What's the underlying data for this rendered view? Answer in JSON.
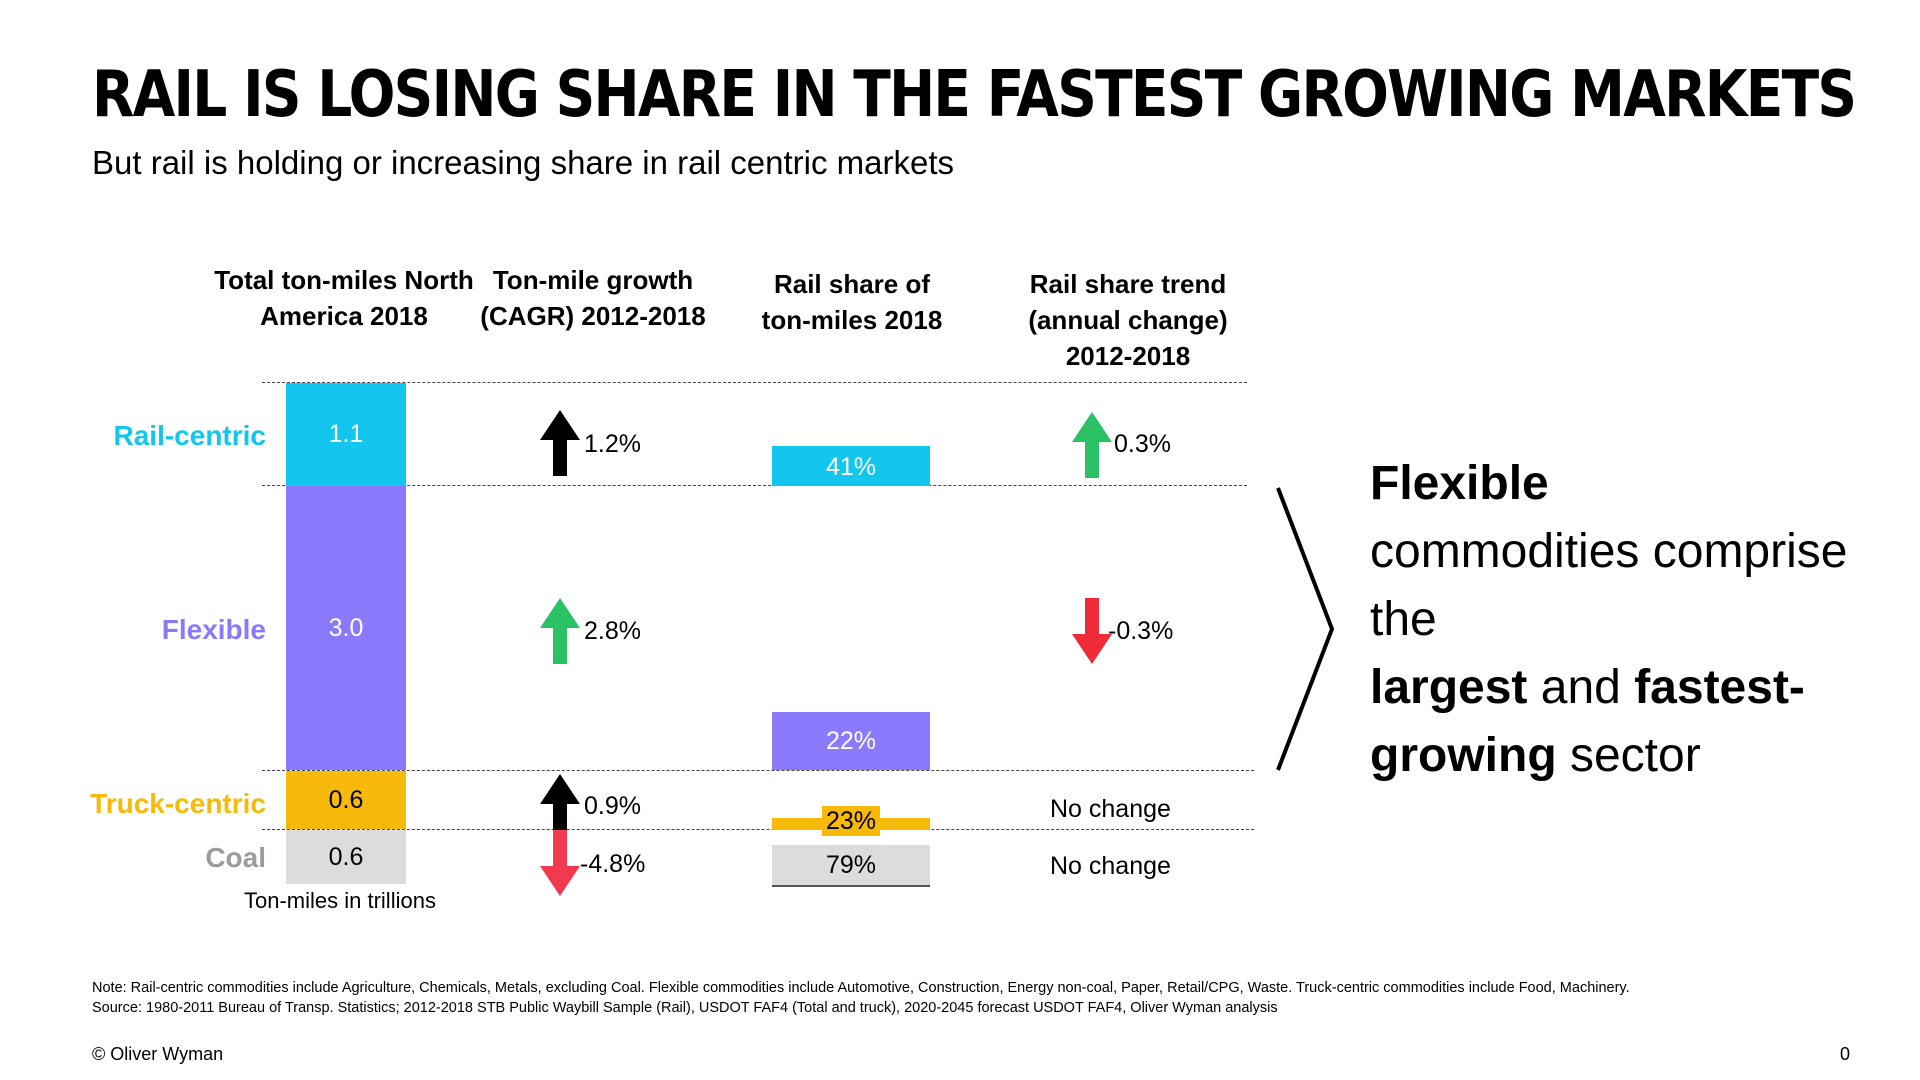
{
  "header": {
    "title": "RAIL IS LOSING SHARE IN THE FASTEST GROWING MARKETS",
    "subtitle": "But rail is holding or increasing share in rail centric markets"
  },
  "columns": {
    "total": "Total ton-miles North America 2018",
    "growth": "Ton-mile growth (CAGR) 2012-2018",
    "share": "Rail share of ton-miles 2018",
    "trend": "Rail share trend (annual change) 2012-2018"
  },
  "colors": {
    "rail_centric": "#12C6EE",
    "flexible": "#8B79FB",
    "truck_centric": "#F7BA0B",
    "coal": "#DCDCDC",
    "arrow_black": "#000000",
    "arrow_green": "#2BC266",
    "arrow_red": "#F02A37",
    "arrow_pink": "#F13A50"
  },
  "chart_data": {
    "type": "table",
    "units_note": "Ton-miles in trillions",
    "rows": [
      {
        "segment": "Rail-centric",
        "ton_miles_label": "1.1",
        "ton_miles": 1.1,
        "growth_label": "1.2%",
        "growth": 1.2,
        "growth_dir": "up",
        "growth_color": "black",
        "share_label": "41%",
        "share": 41,
        "trend_label": "0.3%",
        "trend_dir": "up",
        "trend_color": "green"
      },
      {
        "segment": "Flexible",
        "ton_miles_label": "3.0",
        "ton_miles": 3.0,
        "growth_label": "2.8%",
        "growth": 2.8,
        "growth_dir": "up",
        "growth_color": "green",
        "share_label": "22%",
        "share": 22,
        "trend_label": "-0.3%",
        "trend_dir": "down",
        "trend_color": "red"
      },
      {
        "segment": "Truck-centric",
        "ton_miles_label": "0.6",
        "ton_miles": 0.6,
        "growth_label": "0.9%",
        "growth": 0.9,
        "growth_dir": "up",
        "growth_color": "black",
        "share_label": "23%",
        "share": 23,
        "trend_label": "No change",
        "trend_dir": "none",
        "trend_color": "none"
      },
      {
        "segment": "Coal",
        "ton_miles_label": "0.6",
        "ton_miles": 0.6,
        "growth_label": "-4.8%",
        "growth": -4.8,
        "growth_dir": "down",
        "growth_color": "pink",
        "share_label": "79%",
        "share": 79,
        "trend_label": "No change",
        "trend_dir": "none",
        "trend_color": "none"
      }
    ]
  },
  "callout": {
    "w1": "Flexible",
    "w2": "commodities comprise the",
    "w3": "largest",
    "w4": "and",
    "w5": "fastest-",
    "w6": "growing",
    "w7": "sector"
  },
  "footer": {
    "note": "Note: Rail-centric commodities include Agriculture, Chemicals, Metals, excluding Coal. Flexible commodities include Automotive, Construction, Energy non-coal, Paper, Retail/CPG, Waste. Truck-centric commodities include Food, Machinery.",
    "source": "Source: 1980-2011 Bureau of Transp. Statistics; 2012-2018 STB Public Waybill Sample (Rail), USDOT FAF4 (Total and truck), 2020-2045 forecast USDOT FAF4, Oliver Wyman analysis",
    "copyright": "© Oliver Wyman",
    "page": "0"
  }
}
